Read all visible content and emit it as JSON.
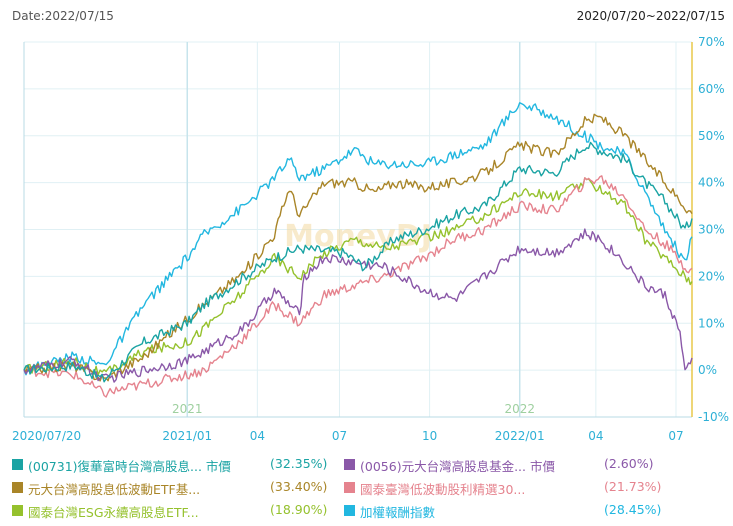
{
  "header": {
    "date_label": "Date:2022/07/15",
    "range_label": "2020/07/20~2022/07/15"
  },
  "watermark": "MoneyDJ",
  "colors": {
    "axis": "#b8dbe6",
    "grid": "#e0f0f4",
    "tick": "#2eb0d6",
    "right_axis": "#e8c84a",
    "s0731": "#1aa3a3",
    "s0056": "#8a58a8",
    "slowvol": "#a98528",
    "shigh": "#e5838e",
    "sesg": "#95c12d",
    "stwii": "#22b7e0"
  },
  "chart_data": {
    "type": "line",
    "ylim": [
      -10,
      70
    ],
    "yticks": [
      "70%",
      "60%",
      "50%",
      "40%",
      "30%",
      "20%",
      "10%",
      "0%",
      "-10%"
    ],
    "xticks": [
      {
        "label": "2020/07/20",
        "t": 0
      },
      {
        "label": "2021/01",
        "t": 163
      },
      {
        "label": "04",
        "t": 233
      },
      {
        "label": "07",
        "t": 315
      },
      {
        "label": "10",
        "t": 405
      },
      {
        "label": "2022/01",
        "t": 495
      },
      {
        "label": "04",
        "t": 571
      },
      {
        "label": "07",
        "t": 651
      }
    ],
    "year_marks": [
      {
        "label": "2021",
        "t": 163
      },
      {
        "label": "2022",
        "t": 495
      }
    ],
    "t_max": 667,
    "series": [
      {
        "key": "s0731",
        "name": "(00731)復華富時台灣高股息... 市價",
        "value_label": "(32.35%)",
        "points": [
          [
            0,
            0
          ],
          [
            50,
            1
          ],
          [
            80,
            -2
          ],
          [
            120,
            6
          ],
          [
            163,
            10
          ],
          [
            180,
            14
          ],
          [
            220,
            20
          ],
          [
            250,
            24
          ],
          [
            275,
            26
          ],
          [
            320,
            25
          ],
          [
            340,
            22
          ],
          [
            370,
            28
          ],
          [
            400,
            30
          ],
          [
            430,
            33
          ],
          [
            460,
            35
          ],
          [
            495,
            43
          ],
          [
            530,
            42
          ],
          [
            560,
            48
          ],
          [
            575,
            47
          ],
          [
            600,
            45
          ],
          [
            620,
            40
          ],
          [
            640,
            36
          ],
          [
            660,
            30
          ],
          [
            667,
            32.35
          ]
        ]
      },
      {
        "key": "s0056",
        "name": "(0056)元大台灣高股息基金... 市價",
        "value_label": "(2.60%)",
        "points": [
          [
            0,
            0
          ],
          [
            50,
            2
          ],
          [
            80,
            -2
          ],
          [
            120,
            0
          ],
          [
            163,
            2
          ],
          [
            180,
            4
          ],
          [
            220,
            9
          ],
          [
            250,
            17
          ],
          [
            275,
            12
          ],
          [
            280,
            20
          ],
          [
            300,
            24
          ],
          [
            330,
            23
          ],
          [
            360,
            22
          ],
          [
            400,
            17
          ],
          [
            430,
            15
          ],
          [
            460,
            20
          ],
          [
            495,
            26
          ],
          [
            530,
            25
          ],
          [
            560,
            29
          ],
          [
            575,
            28
          ],
          [
            600,
            23
          ],
          [
            620,
            18
          ],
          [
            640,
            16
          ],
          [
            655,
            8
          ],
          [
            660,
            -1
          ],
          [
            667,
            2.6
          ]
        ]
      },
      {
        "key": "slowvol",
        "name": "元大台灣高股息低波動ETF基...",
        "value_label": "(33.40%)",
        "points": [
          [
            0,
            0
          ],
          [
            50,
            1
          ],
          [
            80,
            -2
          ],
          [
            120,
            3
          ],
          [
            163,
            11
          ],
          [
            180,
            14
          ],
          [
            220,
            21
          ],
          [
            250,
            29
          ],
          [
            265,
            39
          ],
          [
            275,
            33
          ],
          [
            300,
            40
          ],
          [
            330,
            40
          ],
          [
            350,
            38
          ],
          [
            370,
            40
          ],
          [
            400,
            39
          ],
          [
            430,
            40
          ],
          [
            460,
            42
          ],
          [
            495,
            48
          ],
          [
            530,
            46
          ],
          [
            560,
            53
          ],
          [
            575,
            54
          ],
          [
            600,
            50
          ],
          [
            620,
            45
          ],
          [
            640,
            40
          ],
          [
            660,
            35
          ],
          [
            667,
            33.4
          ]
        ]
      },
      {
        "key": "shigh",
        "name": "國泰臺灣低波動股利精選30...",
        "value_label": "(21.73%)",
        "points": [
          [
            0,
            0
          ],
          [
            50,
            -1
          ],
          [
            80,
            -5
          ],
          [
            120,
            -3
          ],
          [
            163,
            -1
          ],
          [
            180,
            0
          ],
          [
            220,
            7
          ],
          [
            250,
            14
          ],
          [
            275,
            10
          ],
          [
            300,
            16
          ],
          [
            330,
            18
          ],
          [
            360,
            20
          ],
          [
            400,
            24
          ],
          [
            430,
            28
          ],
          [
            460,
            30
          ],
          [
            495,
            35
          ],
          [
            530,
            34
          ],
          [
            560,
            40
          ],
          [
            575,
            41
          ],
          [
            600,
            37
          ],
          [
            620,
            30
          ],
          [
            640,
            27
          ],
          [
            660,
            22
          ],
          [
            667,
            21.73
          ]
        ]
      },
      {
        "key": "sesg",
        "name": "國泰台灣ESG永續高股息ETF...",
        "value_label": "(18.90%)",
        "points": [
          [
            0,
            0
          ],
          [
            50,
            2
          ],
          [
            80,
            -1
          ],
          [
            120,
            4
          ],
          [
            163,
            6
          ],
          [
            180,
            9
          ],
          [
            220,
            17
          ],
          [
            250,
            24
          ],
          [
            275,
            20
          ],
          [
            300,
            25
          ],
          [
            330,
            28
          ],
          [
            360,
            26
          ],
          [
            400,
            28
          ],
          [
            430,
            30
          ],
          [
            460,
            33
          ],
          [
            495,
            38
          ],
          [
            530,
            37
          ],
          [
            560,
            40
          ],
          [
            575,
            39
          ],
          [
            600,
            35
          ],
          [
            620,
            28
          ],
          [
            640,
            24
          ],
          [
            660,
            20
          ],
          [
            667,
            18.9
          ]
        ]
      },
      {
        "key": "stwii",
        "name": "加權報酬指數",
        "value_label": "(28.45%)",
        "points": [
          [
            0,
            0
          ],
          [
            50,
            3
          ],
          [
            80,
            1
          ],
          [
            120,
            14
          ],
          [
            163,
            24
          ],
          [
            180,
            29
          ],
          [
            220,
            35
          ],
          [
            250,
            41
          ],
          [
            265,
            45
          ],
          [
            275,
            41
          ],
          [
            300,
            43
          ],
          [
            330,
            47
          ],
          [
            350,
            44
          ],
          [
            370,
            44
          ],
          [
            400,
            44
          ],
          [
            430,
            46
          ],
          [
            460,
            48
          ],
          [
            495,
            57
          ],
          [
            530,
            54
          ],
          [
            560,
            50
          ],
          [
            575,
            48
          ],
          [
            600,
            46
          ],
          [
            620,
            38
          ],
          [
            640,
            30
          ],
          [
            660,
            23
          ],
          [
            667,
            28.45
          ]
        ]
      }
    ]
  }
}
